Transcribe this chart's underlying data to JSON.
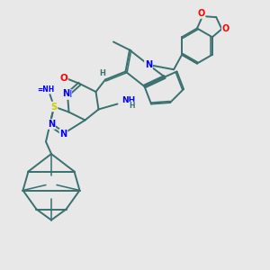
{
  "background_color": "#e8e8e8",
  "bond_color": "#3a7070",
  "bond_width": 1.4,
  "atom_colors": {
    "N": "#0000ff",
    "O": "#ff0000",
    "S": "#cccc00",
    "C": "#3a7070",
    "H": "#3a7070"
  },
  "figsize": [
    3.0,
    3.0
  ],
  "dpi": 100
}
